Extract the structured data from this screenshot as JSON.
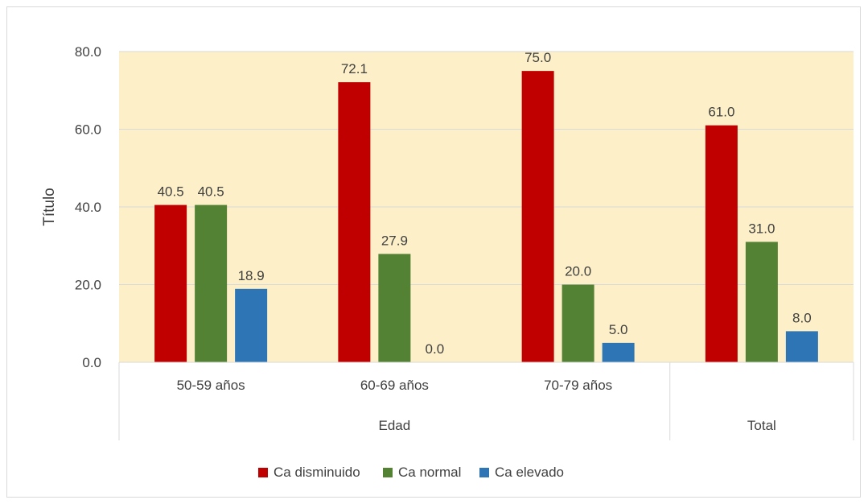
{
  "chart_data": {
    "type": "bar",
    "title": "",
    "ylabel": "Título",
    "xlabel": "",
    "ylim": [
      0,
      80
    ],
    "yticks": [
      "0.0",
      "20.0",
      "40.0",
      "60.0",
      "80.0"
    ],
    "grid": true,
    "legend_position": "bottom",
    "plot_background": "#fdf0c8",
    "categories": [
      "50-59 años",
      "60-69 años",
      "70-79 años",
      ""
    ],
    "group_labels": [
      {
        "label": "Edad",
        "span": [
          0,
          2
        ]
      },
      {
        "label": "Total",
        "span": [
          3,
          3
        ]
      }
    ],
    "series": [
      {
        "name": "Ca disminuido",
        "color": "#c00000",
        "values": [
          40.5,
          72.1,
          75.0,
          61.0
        ],
        "labels": [
          "40.5",
          "72.1",
          "75.0",
          "61.0"
        ]
      },
      {
        "name": "Ca normal",
        "color": "#548235",
        "values": [
          40.5,
          27.9,
          20.0,
          31.0
        ],
        "labels": [
          "40.5",
          "27.9",
          "20.0",
          "31.0"
        ]
      },
      {
        "name": "Ca elevado",
        "color": "#2e75b6",
        "values": [
          18.9,
          0.0,
          5.0,
          8.0
        ],
        "labels": [
          "18.9",
          "0.0",
          "5.0",
          "8.0"
        ]
      }
    ]
  }
}
